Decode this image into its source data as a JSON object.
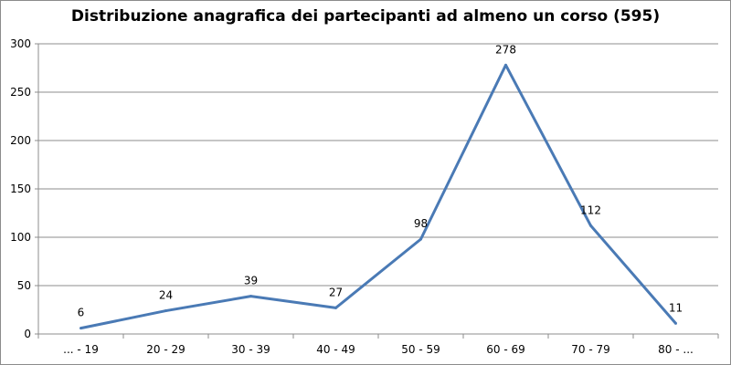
{
  "chart_data": {
    "type": "line",
    "title": "Distribuzione anagrafica dei partecipanti ad almeno un corso (595)",
    "categories": [
      "... - 19",
      "20 - 29",
      "30 - 39",
      "40 - 49",
      "50 - 59",
      "60 - 69",
      "70 - 79",
      "80 - ..."
    ],
    "series": [
      {
        "values": [
          6,
          24,
          39,
          27,
          98,
          278,
          112,
          11
        ]
      }
    ],
    "yticks": [
      "0",
      "50",
      "100",
      "150",
      "200",
      "250",
      "300"
    ],
    "ylim": [
      0,
      300
    ],
    "grid": true,
    "legend": "none",
    "line_color": "#4a7ab5",
    "grid_color": "#8c8c8c"
  }
}
